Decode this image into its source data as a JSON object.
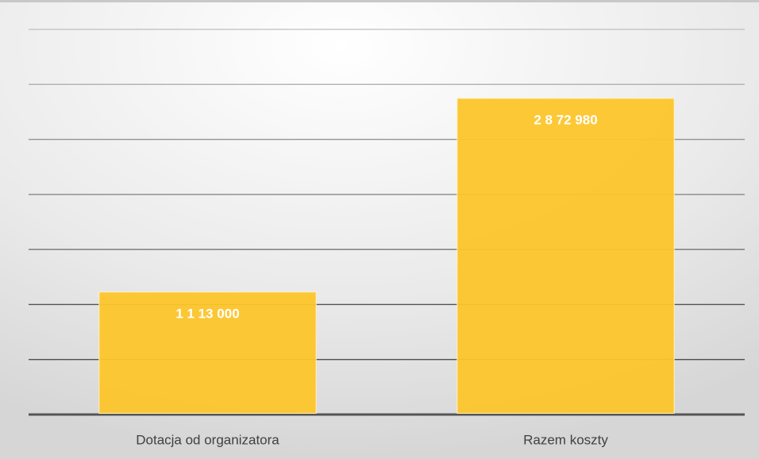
{
  "chart_data": {
    "type": "bar",
    "categories": [
      "Dotacja od organizatora",
      "Razem koszty"
    ],
    "values": [
      1113000,
      2872980
    ],
    "value_labels": [
      "1 1 13 000",
      "2 8 72 980"
    ],
    "color": "#fdc52b",
    "ylim": [
      0,
      3500000
    ],
    "yticks": [
      0,
      500000,
      1000000,
      1500000,
      2000000,
      2500000,
      3000000,
      3500000
    ],
    "grid": true
  }
}
